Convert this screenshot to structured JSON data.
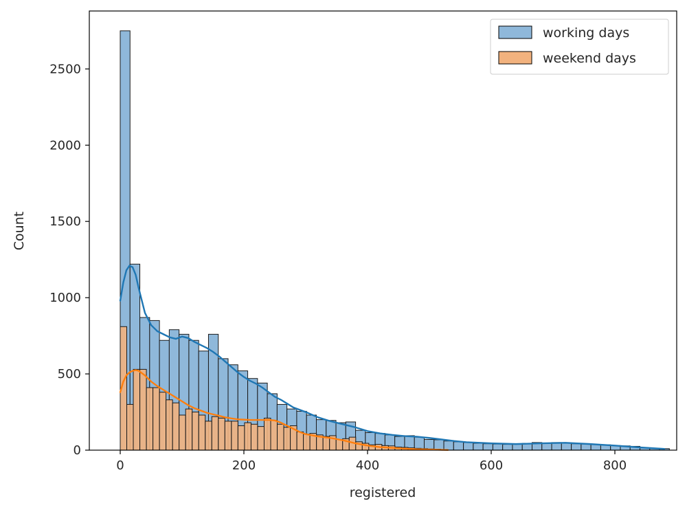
{
  "chart_data": {
    "type": "bar",
    "subtype": "histogram-with-kde",
    "xlabel": "registered",
    "ylabel": "Count",
    "xlim": [
      -50,
      900
    ],
    "ylim": [
      0,
      2880
    ],
    "xticks": [
      0,
      200,
      400,
      600,
      800
    ],
    "yticks": [
      0,
      500,
      1000,
      1500,
      2000,
      2500
    ],
    "grid": false,
    "legend_position": "top-right",
    "bin_width": 15.86,
    "series": [
      {
        "name": "working days",
        "color": "#1f77b4",
        "bar_fill": "#8fb8da",
        "bin_starts": [
          0,
          15.86,
          31.72,
          47.58,
          63.44,
          79.3,
          95.16,
          111.02,
          126.88,
          142.74,
          158.6,
          174.46,
          190.32,
          206.18,
          222.04,
          237.9,
          253.76,
          269.62,
          285.48,
          301.34,
          317.2,
          333.06,
          348.92,
          364.78,
          380.64,
          396.5,
          412.36,
          428.22,
          444.08,
          459.94,
          475.8,
          491.66,
          507.52,
          523.38,
          539.24,
          555.1,
          570.96,
          586.82,
          602.68,
          618.54,
          634.4,
          650.26,
          666.12,
          681.98,
          697.84,
          713.7,
          729.56,
          745.42,
          761.28,
          777.14,
          793.0,
          808.86,
          824.72,
          840.58,
          856.44,
          872.3
        ],
        "values": [
          2750,
          1220,
          870,
          850,
          720,
          790,
          760,
          720,
          650,
          760,
          600,
          560,
          520,
          470,
          440,
          370,
          300,
          270,
          255,
          230,
          200,
          195,
          180,
          185,
          130,
          115,
          110,
          100,
          90,
          95,
          85,
          70,
          68,
          60,
          55,
          50,
          45,
          42,
          40,
          38,
          40,
          45,
          50,
          45,
          50,
          48,
          42,
          40,
          38,
          35,
          30,
          28,
          25,
          15,
          12,
          10
        ],
        "kde_x": [
          0,
          5,
          10,
          15,
          20,
          25,
          30,
          40,
          50,
          60,
          70,
          80,
          90,
          100,
          110,
          120,
          130,
          140,
          150,
          160,
          170,
          180,
          190,
          200,
          210,
          220,
          230,
          240,
          250,
          260,
          270,
          280,
          300,
          320,
          340,
          360,
          380,
          400,
          420,
          440,
          460,
          480,
          500,
          520,
          540,
          560,
          600,
          640,
          680,
          720,
          760,
          800,
          840,
          880
        ],
        "kde_y": [
          980,
          1100,
          1180,
          1210,
          1200,
          1150,
          1060,
          900,
          820,
          780,
          760,
          740,
          730,
          745,
          735,
          710,
          690,
          670,
          645,
          615,
          580,
          545,
          510,
          480,
          455,
          435,
          410,
          380,
          350,
          330,
          305,
          280,
          250,
          215,
          190,
          170,
          150,
          125,
          110,
          100,
          92,
          88,
          80,
          70,
          60,
          52,
          45,
          40,
          45,
          48,
          40,
          30,
          18,
          8
        ]
      },
      {
        "name": "weekend days",
        "color": "#ff7f0e",
        "bar_fill": "#f2b27e",
        "bin_starts": [
          0,
          10.58,
          21.16,
          31.74,
          42.32,
          52.9,
          63.48,
          74.06,
          84.64,
          95.22,
          105.8,
          116.38,
          126.96,
          137.54,
          148.12,
          158.7,
          169.28,
          179.86,
          190.44,
          201.02,
          211.6,
          222.18,
          232.76,
          243.34,
          253.92,
          264.5,
          275.08,
          285.66,
          296.24,
          306.82,
          317.4,
          327.98,
          338.56,
          349.14,
          359.72,
          370.3,
          380.88,
          391.46,
          402.04,
          412.62,
          423.2,
          433.78,
          444.36,
          454.94,
          465.52,
          476.1,
          486.68,
          497.26,
          507.84,
          518.42
        ],
        "values": [
          810,
          300,
          530,
          530,
          410,
          410,
          380,
          330,
          310,
          230,
          270,
          250,
          230,
          190,
          220,
          210,
          190,
          190,
          160,
          180,
          170,
          155,
          210,
          195,
          170,
          150,
          160,
          120,
          105,
          110,
          100,
          90,
          95,
          70,
          75,
          85,
          55,
          45,
          35,
          38,
          30,
          28,
          20,
          18,
          15,
          12,
          10,
          8,
          6,
          4
        ],
        "kde_x": [
          0,
          5,
          10,
          15,
          20,
          25,
          30,
          40,
          50,
          60,
          70,
          80,
          90,
          100,
          110,
          120,
          130,
          140,
          150,
          160,
          170,
          180,
          190,
          200,
          210,
          220,
          230,
          240,
          250,
          260,
          270,
          280,
          290,
          300,
          320,
          340,
          360,
          380,
          400,
          420,
          440,
          460,
          480,
          500,
          520,
          530
        ],
        "kde_y": [
          380,
          450,
          490,
          510,
          520,
          525,
          520,
          490,
          450,
          420,
          395,
          370,
          345,
          320,
          295,
          275,
          260,
          245,
          235,
          225,
          215,
          208,
          202,
          200,
          198,
          198,
          198,
          198,
          195,
          180,
          160,
          140,
          120,
          105,
          90,
          80,
          65,
          45,
          30,
          20,
          15,
          10,
          6,
          4,
          2,
          1
        ]
      }
    ]
  }
}
